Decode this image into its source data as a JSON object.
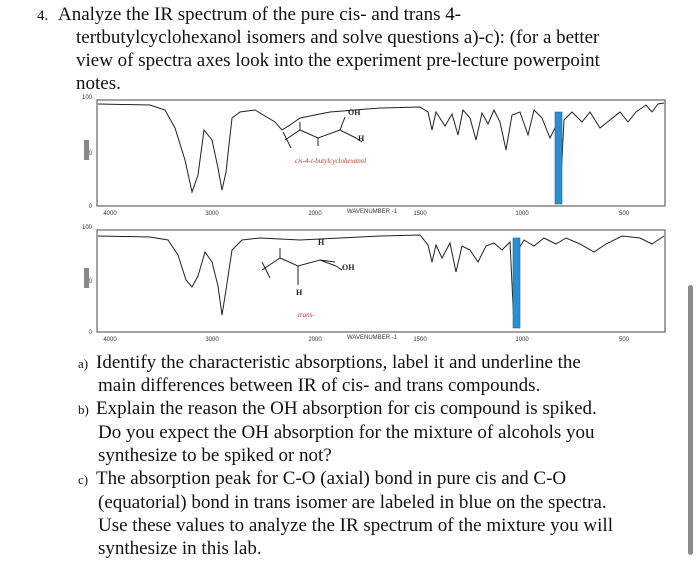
{
  "question": {
    "number": "4.",
    "lines": [
      "Analyze the IR spectrum of the pure cis- and trans 4-",
      "tertbutylcyclohexanol isomers and solve questions a)-c): (for a better",
      "view of spectra axes look into the experiment pre-lecture powerpoint",
      "notes."
    ]
  },
  "spectra": [
    {
      "compound": "cis-4-t-butylcyclohexanol",
      "oh": "OH",
      "h": "H",
      "x_axis_ticks": [
        "4000",
        "3000",
        "2000",
        "1500",
        "1000",
        "500"
      ],
      "x_axis_title": "WAVENUMBER -1",
      "y_axis_ticks": [
        "100",
        "50",
        "0"
      ]
    },
    {
      "compound": "trans-",
      "oh": "OH",
      "h": "H",
      "x_axis_ticks": [
        "4000",
        "3000",
        "2000",
        "1500",
        "1000",
        "500"
      ],
      "x_axis_title": "WAVENUMBER -1",
      "y_axis_ticks": [
        "100",
        "50",
        "0"
      ]
    }
  ],
  "items": [
    {
      "marker": "a)",
      "lines": [
        "Identify the characteristic absorptions, label it and underline the",
        "main differences between IR of cis- and trans compounds."
      ]
    },
    {
      "marker": "b)",
      "lines": [
        "Explain the reason the OH absorption for cis compound is spiked.",
        "Do you expect the OH absorption for the mixture of alcohols you",
        "synthesize to be spiked or not?"
      ]
    },
    {
      "marker": "c)",
      "lines": [
        "The absorption peak for C-O (axial) bond in pure cis and C-O",
        "(equatorial) bond in trans isomer are labeled in blue on the spectra.",
        "Use these values to analyze the IR spectrum of the mixture you will",
        "synthesize in this lab."
      ]
    }
  ]
}
